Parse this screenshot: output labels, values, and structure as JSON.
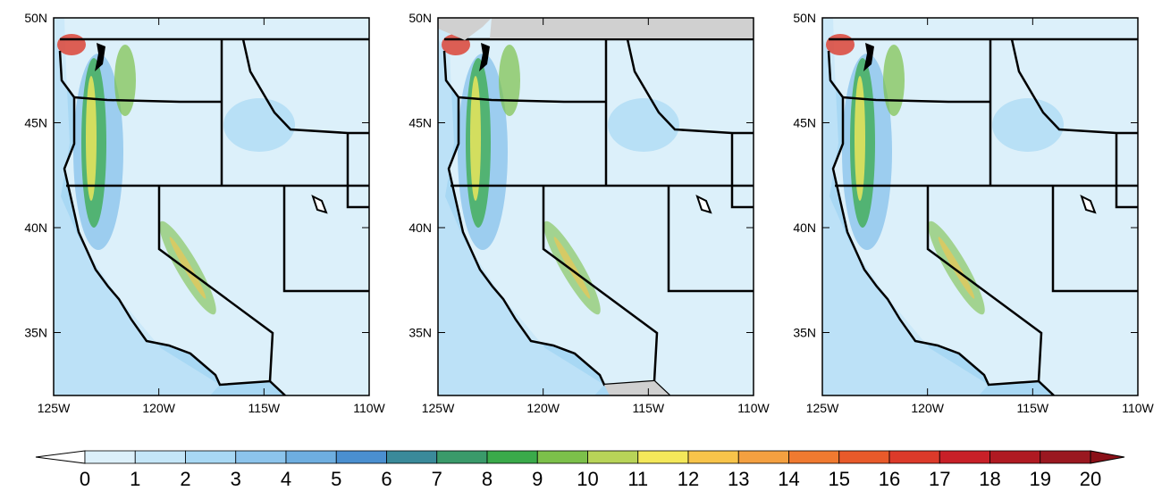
{
  "map_extent": {
    "lon": [
      -125,
      -110
    ],
    "lat": [
      32,
      50
    ]
  },
  "panels": [
    {
      "xticks": [
        {
          "value": -125,
          "label": "125W"
        },
        {
          "value": -120,
          "label": "120W"
        },
        {
          "value": -115,
          "label": "115W"
        },
        {
          "value": -110,
          "label": "110W"
        }
      ],
      "yticks": [
        {
          "value": 35,
          "label": "35N"
        },
        {
          "value": 40,
          "label": "40N"
        },
        {
          "value": 45,
          "label": "45N"
        },
        {
          "value": 50,
          "label": "50N"
        }
      ]
    },
    {
      "xticks": [
        {
          "value": -125,
          "label": "125W"
        },
        {
          "value": -120,
          "label": "120W"
        },
        {
          "value": -115,
          "label": "115W"
        },
        {
          "value": -110,
          "label": "110W"
        }
      ],
      "yticks": [
        {
          "value": 35,
          "label": "35N"
        },
        {
          "value": 40,
          "label": "40N"
        },
        {
          "value": 45,
          "label": "45N"
        },
        {
          "value": 50,
          "label": "50N"
        }
      ]
    },
    {
      "xticks": [
        {
          "value": -125,
          "label": "125W"
        },
        {
          "value": -120,
          "label": "120W"
        },
        {
          "value": -115,
          "label": "115W"
        },
        {
          "value": -110,
          "label": "110W"
        }
      ],
      "yticks": [
        {
          "value": 35,
          "label": "35N"
        },
        {
          "value": 40,
          "label": "40N"
        },
        {
          "value": 45,
          "label": "45N"
        },
        {
          "value": 50,
          "label": "50N"
        }
      ]
    }
  ],
  "colorbar": {
    "levels": [
      0,
      1,
      2,
      3,
      4,
      5,
      6,
      7,
      8,
      9,
      10,
      11,
      12,
      13,
      14,
      15,
      16,
      17,
      18,
      19,
      20
    ],
    "colors": [
      "#ffffff",
      "#dcf0fa",
      "#c4e6f8",
      "#a8d8f4",
      "#8cc4ec",
      "#6eaee0",
      "#4a8fd0",
      "#3a8a9a",
      "#3a9a6a",
      "#3aaa4a",
      "#7cc04a",
      "#b8d458",
      "#f4e85a",
      "#f8c44a",
      "#f4a040",
      "#f07a30",
      "#e85a2a",
      "#dc3a2a",
      "#c82028",
      "#b01a22",
      "#9a1820",
      "#8a1018"
    ]
  }
}
